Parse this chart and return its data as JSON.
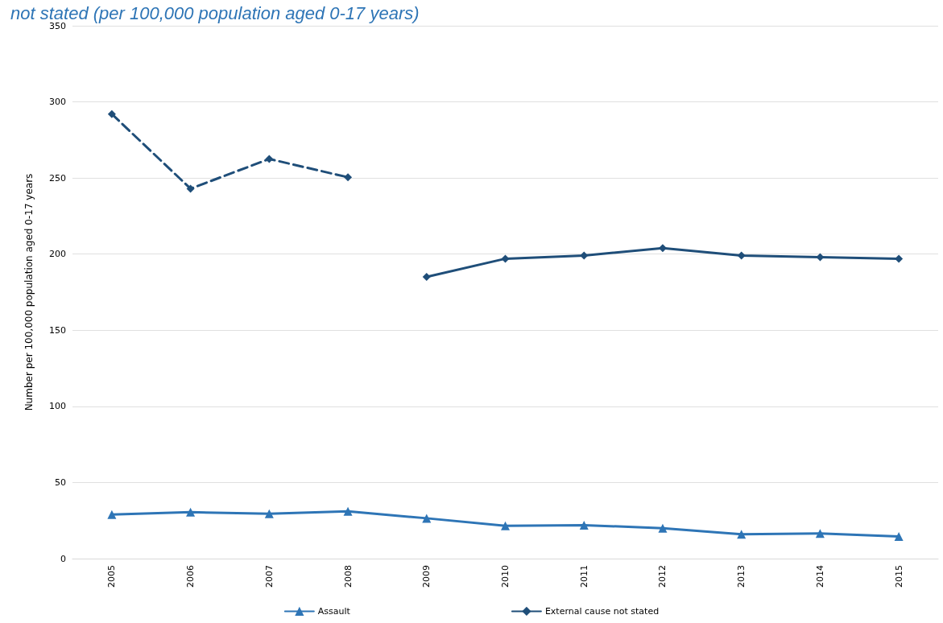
{
  "chart_data": {
    "type": "line",
    "title": "not stated (per 100,000 population aged 0-17 years)",
    "ylabel": "Number per 100,000 population aged 0-17 years",
    "categories": [
      "2005",
      "2006",
      "2007",
      "2008",
      "2009",
      "2010",
      "2011",
      "2012",
      "2013",
      "2014",
      "2015"
    ],
    "series": [
      {
        "name": "Assault",
        "color": "#2e75b6",
        "marker": "triangle",
        "line_style": "solid",
        "values": [
          29,
          30.5,
          29.5,
          31,
          26.5,
          21.5,
          22,
          20,
          16,
          16.5,
          14.5
        ]
      },
      {
        "name": "External cause not stated",
        "color": "#1f4e79",
        "marker": "diamond",
        "line_style": "solid",
        "values": [
          null,
          null,
          null,
          null,
          185,
          197,
          199,
          204,
          199,
          198,
          197
        ]
      },
      {
        "color": "#1f4e79",
        "marker": "diamond",
        "line_style": "dashed",
        "values": [
          292,
          243,
          262.5,
          250.5,
          null,
          null,
          null,
          null,
          null,
          null,
          null
        ]
      }
    ],
    "ylim": [
      0,
      350
    ],
    "yticks": [
      0,
      50,
      100,
      150,
      200,
      250,
      300,
      350
    ],
    "grid": "y",
    "legend": "bottom"
  }
}
